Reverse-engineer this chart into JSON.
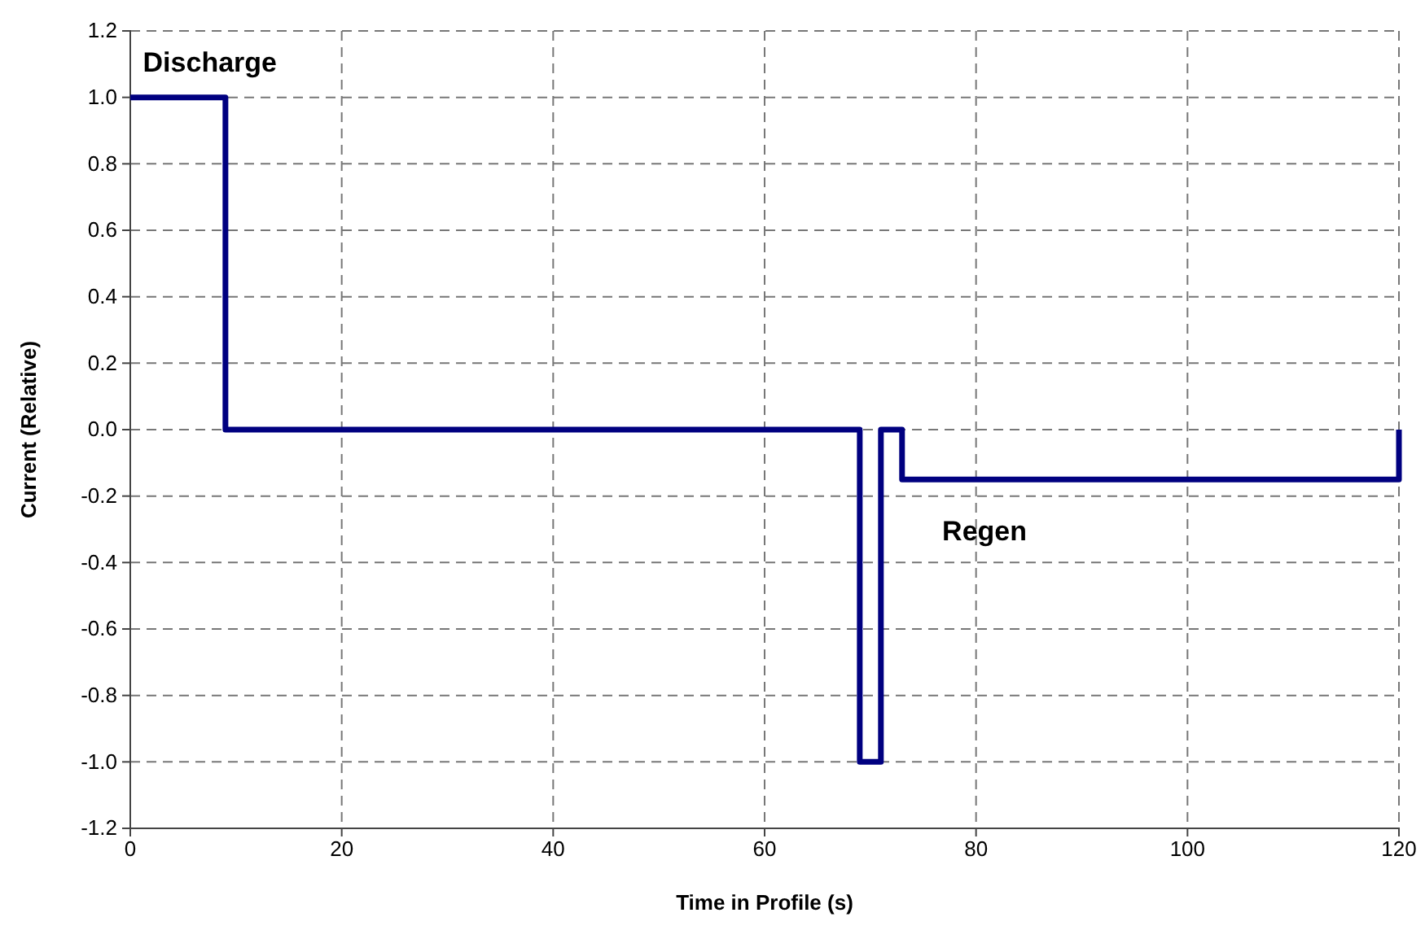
{
  "chart_data": {
    "type": "line",
    "xlabel": "Time in Profile (s)",
    "ylabel": "Current (Relative)",
    "x": [
      0,
      9,
      9,
      69,
      69,
      71,
      71,
      73,
      73,
      120,
      120
    ],
    "series": [
      {
        "color": "#000080",
        "values": [
          1,
          1,
          0,
          0,
          -1,
          -1,
          0,
          0,
          -0.15,
          -0.15,
          0
        ]
      }
    ],
    "xlim": [
      0,
      120
    ],
    "xticks": [
      0,
      20,
      40,
      60,
      80,
      100,
      120
    ],
    "ylim": [
      -1.2,
      1.2
    ],
    "yticks": [
      {
        "value": -1.2,
        "label": "-1.2"
      },
      {
        "value": -1.0,
        "label": "-1.0"
      },
      {
        "value": -0.8,
        "label": "-0.8"
      },
      {
        "value": -0.6,
        "label": "-0.6"
      },
      {
        "value": -0.4,
        "label": "-0.4"
      },
      {
        "value": -0.2,
        "label": "-0.2"
      },
      {
        "value": 0,
        "label": "0.0"
      },
      {
        "value": 0.2,
        "label": "0.2"
      },
      {
        "value": 0.4,
        "label": "0.4"
      },
      {
        "value": 0.6,
        "label": "0.6"
      },
      {
        "value": 0.8,
        "label": "0.8"
      },
      {
        "value": 1.0,
        "label": "1.0"
      },
      {
        "value": 1.2,
        "label": "1.2"
      }
    ],
    "grid": true,
    "marker": "none",
    "line_style": "solid",
    "annotations": [
      "Discharge",
      "Regen"
    ]
  }
}
